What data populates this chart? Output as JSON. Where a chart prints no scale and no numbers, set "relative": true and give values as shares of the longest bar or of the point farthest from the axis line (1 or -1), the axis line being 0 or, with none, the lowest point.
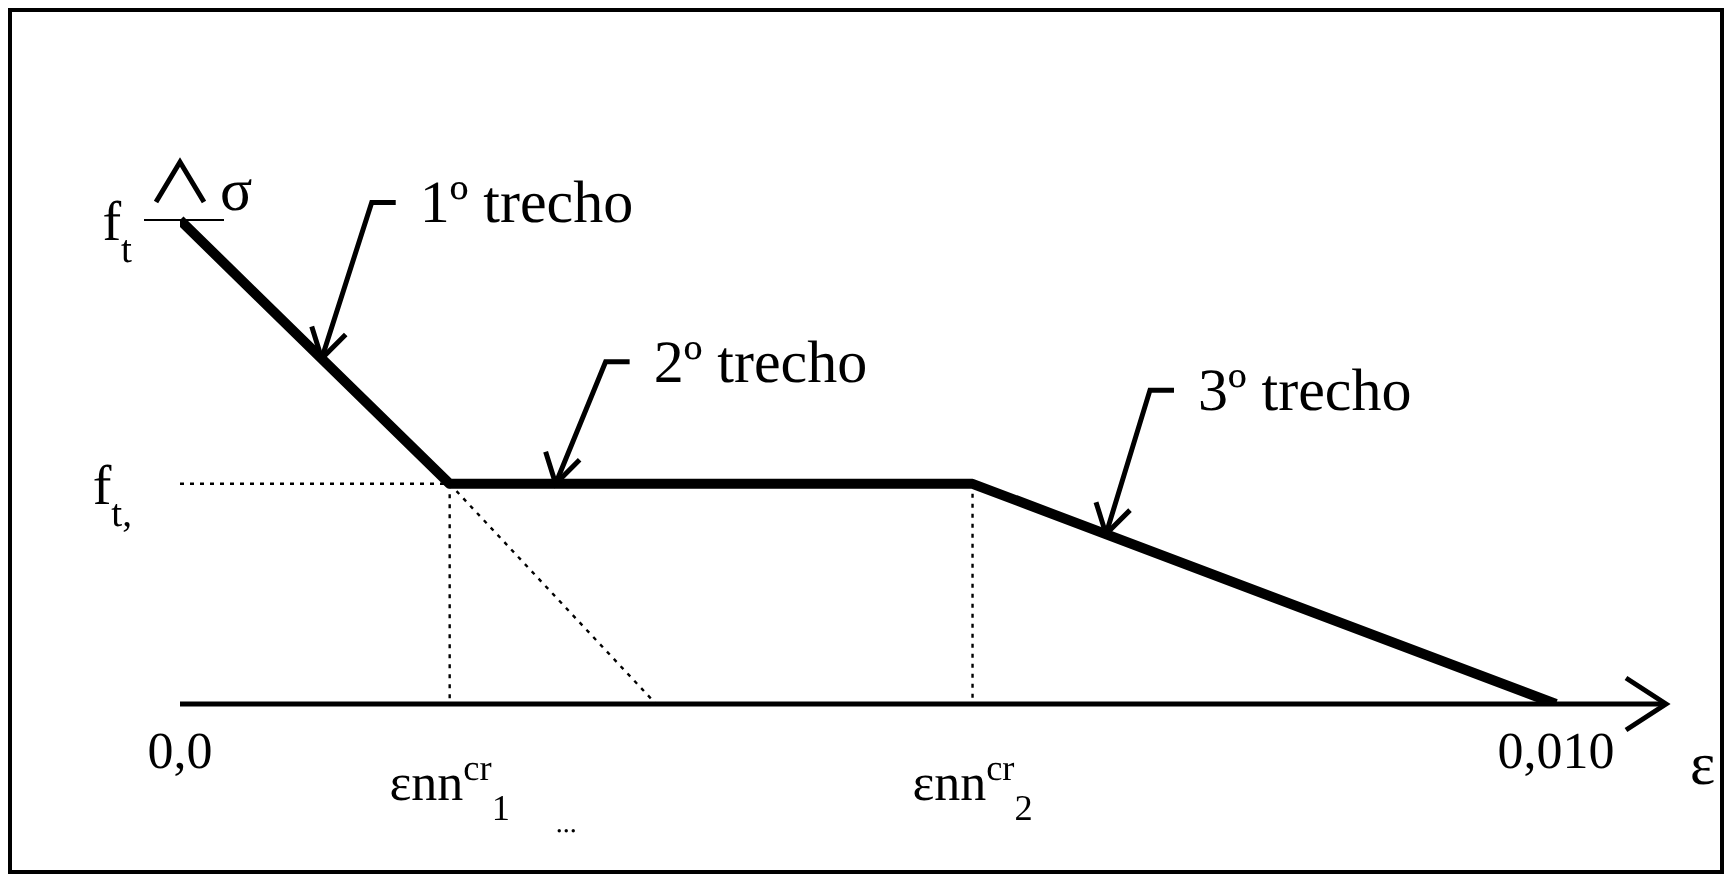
{
  "chart_data": {
    "type": "line",
    "relative": true,
    "xlabel": "ε",
    "ylabel": "σ",
    "xlim": [
      0,
      0.0108
    ],
    "xticks": [
      {
        "value": 0,
        "label": "0,0"
      },
      {
        "value": 0.01,
        "label": "0,010"
      }
    ],
    "marker": "none",
    "series": [
      {
        "color": "#000000",
        "line_style": "solid",
        "x": [
          0,
          0.00196,
          0.00576,
          0.01
        ],
        "values": [
          1,
          0.455,
          0.455,
          0
        ]
      },
      {
        "color": "#000000",
        "line_style": "dotted",
        "x": [
          0,
          0.00196,
          0.00196
        ],
        "values": [
          0.455,
          0.455,
          0
        ]
      },
      {
        "color": "#000000",
        "line_style": "dotted",
        "x": [
          0.00196,
          0.00346
        ],
        "values": [
          0.455,
          0
        ]
      },
      {
        "color": "#000000",
        "line_style": "dotted",
        "x": [
          0.00576,
          0.00576
        ],
        "values": [
          0.455,
          0
        ]
      }
    ],
    "annotations": [
      {
        "text": "f$_{t}$",
        "x": 0,
        "y": 1
      },
      {
        "text": "f$_{t,}$",
        "x": 0,
        "y": 0.455
      },
      {
        "text": "1º trecho",
        "x": 0.00103,
        "y": 0.714
      },
      {
        "text": "2º trecho",
        "x": 0.00273,
        "y": 0.455
      },
      {
        "text": "3º trecho",
        "x": 0.00673,
        "y": 0.351
      },
      {
        "text": "εnn$^{cr}$$_{1}$",
        "x": 0.00196,
        "y": 0
      },
      {
        "text": "εnn$^{cr}$$_{2}$",
        "x": 0.00576,
        "y": 0
      },
      "..."
    ]
  }
}
